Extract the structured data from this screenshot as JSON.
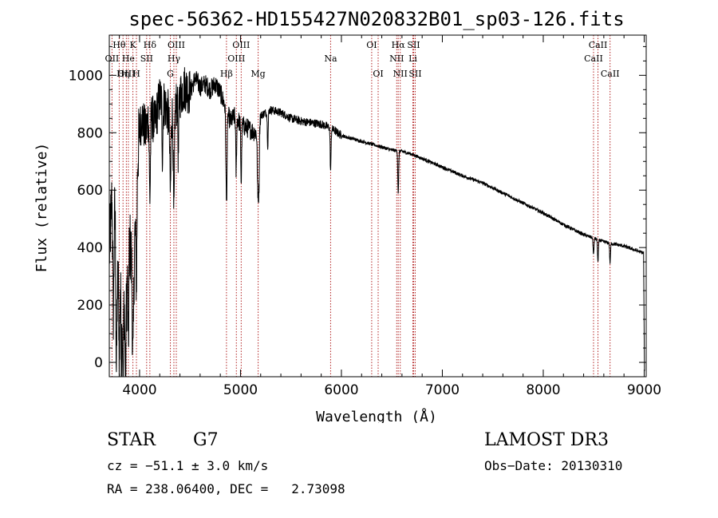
{
  "chart_data": {
    "type": "line",
    "title": "spec-56362-HD155427N020832B01_sp03-126.fits",
    "xlabel": "Wavelength (Å)",
    "ylabel": "Flux (relative)",
    "xlim": [
      3700,
      9020
    ],
    "ylim": [
      -50,
      1140
    ],
    "xticks": [
      4000,
      5000,
      6000,
      7000,
      8000,
      9000
    ],
    "yticks": [
      0,
      200,
      400,
      600,
      800,
      1000
    ],
    "anchors": [
      {
        "x": 3700,
        "y": 380
      },
      {
        "x": 3740,
        "y": 680
      },
      {
        "x": 3780,
        "y": 260
      },
      {
        "x": 3820,
        "y": 340
      },
      {
        "x": 3860,
        "y": 160
      },
      {
        "x": 3900,
        "y": 420
      },
      {
        "x": 3940,
        "y": 300
      },
      {
        "x": 3980,
        "y": 720
      },
      {
        "x": 4020,
        "y": 860
      },
      {
        "x": 4060,
        "y": 800
      },
      {
        "x": 4100,
        "y": 880
      },
      {
        "x": 4150,
        "y": 830
      },
      {
        "x": 4200,
        "y": 920
      },
      {
        "x": 4250,
        "y": 900
      },
      {
        "x": 4300,
        "y": 850
      },
      {
        "x": 4340,
        "y": 880
      },
      {
        "x": 4400,
        "y": 930
      },
      {
        "x": 4450,
        "y": 960
      },
      {
        "x": 4500,
        "y": 940
      },
      {
        "x": 4550,
        "y": 990
      },
      {
        "x": 4600,
        "y": 960
      },
      {
        "x": 4650,
        "y": 970
      },
      {
        "x": 4700,
        "y": 950
      },
      {
        "x": 4750,
        "y": 970
      },
      {
        "x": 4800,
        "y": 940
      },
      {
        "x": 4850,
        "y": 890
      },
      {
        "x": 4900,
        "y": 840
      },
      {
        "x": 4950,
        "y": 860
      },
      {
        "x": 5000,
        "y": 830
      },
      {
        "x": 5050,
        "y": 820
      },
      {
        "x": 5100,
        "y": 810
      },
      {
        "x": 5150,
        "y": 800
      },
      {
        "x": 5200,
        "y": 860
      },
      {
        "x": 5300,
        "y": 880
      },
      {
        "x": 5400,
        "y": 870
      },
      {
        "x": 5500,
        "y": 850
      },
      {
        "x": 5600,
        "y": 840
      },
      {
        "x": 5700,
        "y": 835
      },
      {
        "x": 5800,
        "y": 830
      },
      {
        "x": 5900,
        "y": 815
      },
      {
        "x": 6000,
        "y": 790
      },
      {
        "x": 6100,
        "y": 780
      },
      {
        "x": 6200,
        "y": 770
      },
      {
        "x": 6300,
        "y": 760
      },
      {
        "x": 6400,
        "y": 750
      },
      {
        "x": 6500,
        "y": 740
      },
      {
        "x": 6600,
        "y": 735
      },
      {
        "x": 6700,
        "y": 725
      },
      {
        "x": 6800,
        "y": 710
      },
      {
        "x": 7000,
        "y": 680
      },
      {
        "x": 7200,
        "y": 650
      },
      {
        "x": 7400,
        "y": 625
      },
      {
        "x": 7600,
        "y": 590
      },
      {
        "x": 7800,
        "y": 555
      },
      {
        "x": 8000,
        "y": 520
      },
      {
        "x": 8200,
        "y": 480
      },
      {
        "x": 8400,
        "y": 445
      },
      {
        "x": 8600,
        "y": 420
      },
      {
        "x": 8800,
        "y": 405
      },
      {
        "x": 9000,
        "y": 380
      }
    ],
    "absorption_features": [
      {
        "x": 3740,
        "depth": 500,
        "width": 8
      },
      {
        "x": 3770,
        "depth": 400,
        "width": 6
      },
      {
        "x": 3800,
        "depth": 300,
        "width": 6
      },
      {
        "x": 3820,
        "depth": 350,
        "width": 6
      },
      {
        "x": 3836,
        "depth": 400,
        "width": 6
      },
      {
        "x": 3860,
        "depth": 250,
        "width": 6
      },
      {
        "x": 3889,
        "depth": 300,
        "width": 6
      },
      {
        "x": 3934,
        "depth": 320,
        "width": 8
      },
      {
        "x": 3969,
        "depth": 300,
        "width": 8
      },
      {
        "x": 4102,
        "depth": 300,
        "width": 8
      },
      {
        "x": 4227,
        "depth": 180,
        "width": 6
      },
      {
        "x": 4305,
        "depth": 260,
        "width": 8
      },
      {
        "x": 4340,
        "depth": 380,
        "width": 8
      },
      {
        "x": 4384,
        "depth": 200,
        "width": 6
      },
      {
        "x": 4861,
        "depth": 320,
        "width": 8
      },
      {
        "x": 4957,
        "depth": 200,
        "width": 6
      },
      {
        "x": 5007,
        "depth": 200,
        "width": 6
      },
      {
        "x": 5172,
        "depth": 250,
        "width": 8
      },
      {
        "x": 5183,
        "depth": 200,
        "width": 6
      },
      {
        "x": 5270,
        "depth": 120,
        "width": 6
      },
      {
        "x": 5893,
        "depth": 150,
        "width": 6
      },
      {
        "x": 6563,
        "depth": 150,
        "width": 6
      },
      {
        "x": 8498,
        "depth": 60,
        "width": 6
      },
      {
        "x": 8542,
        "depth": 80,
        "width": 6
      },
      {
        "x": 8662,
        "depth": 70,
        "width": 6
      }
    ],
    "spectral_lines": [
      {
        "label": "Hθ",
        "x": 3798,
        "row": 1
      },
      {
        "label": "OII",
        "x": 3727,
        "row": 2
      },
      {
        "label": "OIII",
        "x": 3869,
        "row": 3
      },
      {
        "label": "K",
        "x": 3934,
        "row": 1
      },
      {
        "label": "He",
        "x": 3889,
        "row": 2
      },
      {
        "label": "Hη",
        "x": 3836,
        "row": 3
      },
      {
        "label": "Hδ",
        "x": 4102,
        "row": 1
      },
      {
        "label": "SII",
        "x": 4070,
        "row": 2
      },
      {
        "label": "H",
        "x": 3969,
        "row": 3
      },
      {
        "label": "OIII",
        "x": 4364,
        "row": 1
      },
      {
        "label": "Hγ",
        "x": 4340,
        "row": 2
      },
      {
        "label": "G",
        "x": 4305,
        "row": 3
      },
      {
        "label": "OIII",
        "x": 5007,
        "row": 1
      },
      {
        "label": "OIII",
        "x": 4959,
        "row": 2
      },
      {
        "label": "Hβ",
        "x": 4861,
        "row": 3
      },
      {
        "label": "Mg",
        "x": 5175,
        "row": 3
      },
      {
        "label": "Na",
        "x": 5893,
        "row": 2
      },
      {
        "label": "OI",
        "x": 6300,
        "row": 1
      },
      {
        "label": "OI",
        "x": 6364,
        "row": 3
      },
      {
        "label": "Hα",
        "x": 6563,
        "row": 1
      },
      {
        "label": "NII",
        "x": 6548,
        "row": 2
      },
      {
        "label": "NII",
        "x": 6583,
        "row": 3
      },
      {
        "label": "SII",
        "x": 6716,
        "row": 1
      },
      {
        "label": "Li",
        "x": 6708,
        "row": 2
      },
      {
        "label": "SII",
        "x": 6731,
        "row": 3
      },
      {
        "label": "CaII",
        "x": 8542,
        "row": 1
      },
      {
        "label": "CaII",
        "x": 8498,
        "row": 2
      },
      {
        "label": "CaII",
        "x": 8662,
        "row": 3
      }
    ]
  },
  "info": {
    "object_class": "STAR",
    "subclass": "G7",
    "survey": "LAMOST DR3",
    "cz": "cz = −51.1 ± 3.0 km/s",
    "obs_date": "Obs−Date: 20130310",
    "coords": "RA = 238.06400, DEC =   2.73098"
  },
  "colors": {
    "line_marker": "#b22222",
    "spectrum": "#000000",
    "axes": "#000000"
  }
}
